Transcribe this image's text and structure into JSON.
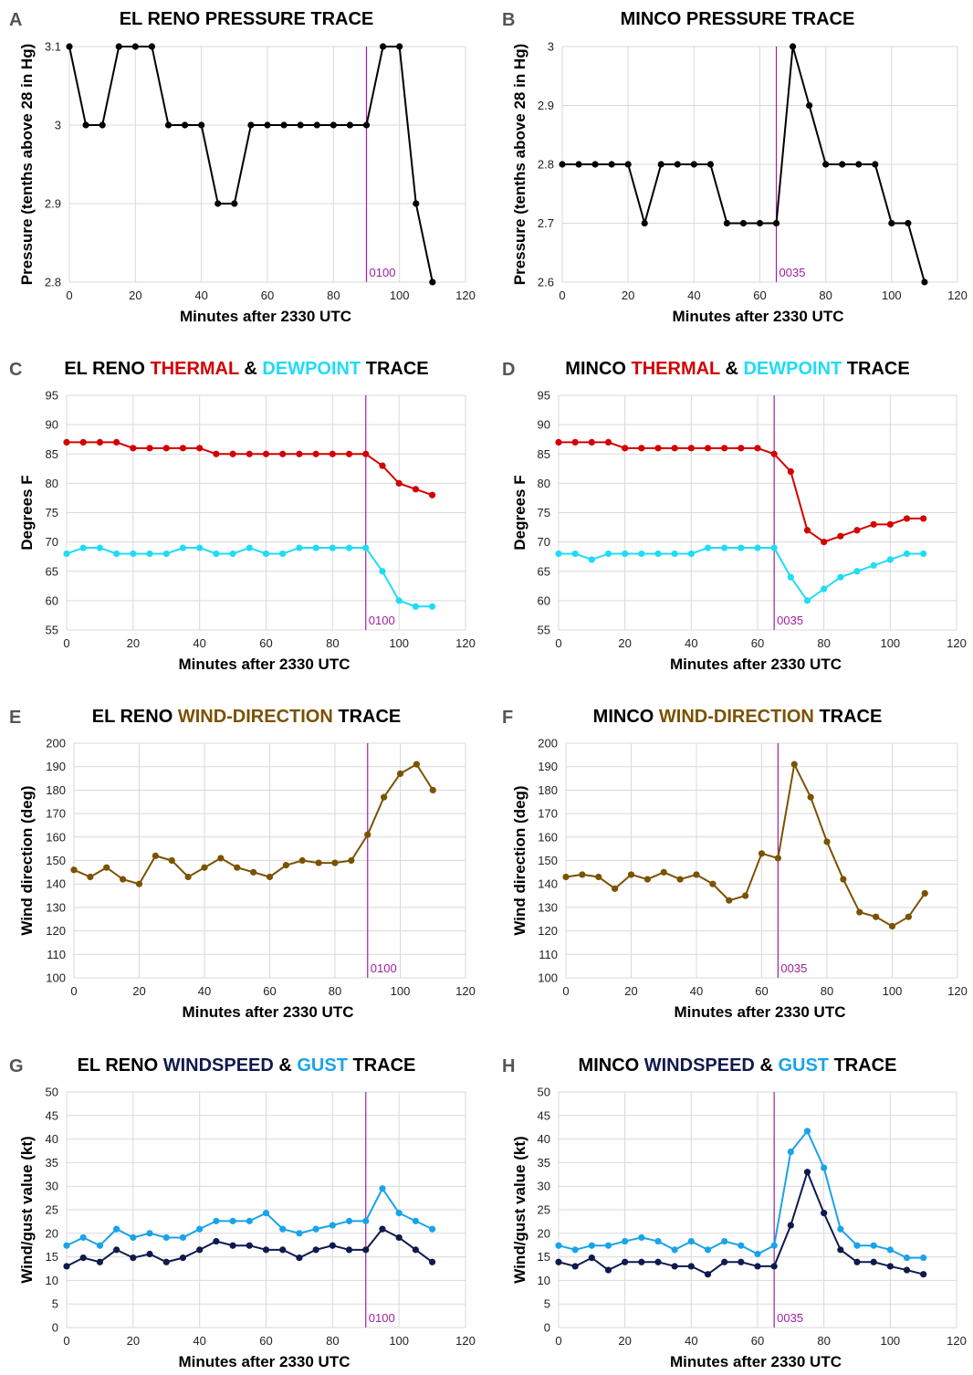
{
  "colors": {
    "black": "#000000",
    "thermal": "#d40000",
    "dewpoint": "#1fdcf5",
    "wind_dir": "#7a5200",
    "speed": "#0e1a4d",
    "gust": "#1aa3e8",
    "marker": "#a020a0",
    "grid": "#d9d9d9"
  },
  "chart_data": [
    {
      "panel": "A",
      "type": "line",
      "title": [
        {
          "text": "EL RENO PRESSURE TRACE",
          "color": "black"
        }
      ],
      "xlabel": "Minutes after 2330 UTC",
      "ylabel": "Pressure (tenths above 28 in Hg)",
      "xlim": [
        0,
        120
      ],
      "xticks": [
        "0",
        "20",
        "40",
        "60",
        "80",
        "100",
        "120"
      ],
      "ylim": [
        2.8,
        3.1
      ],
      "yticks": [
        "2.8",
        "2.9",
        "3",
        "3.1"
      ],
      "marker": {
        "x": 90,
        "label": "0100"
      },
      "x": [
        0,
        5,
        10,
        15,
        20,
        25,
        30,
        35,
        40,
        45,
        50,
        55,
        60,
        65,
        70,
        75,
        80,
        85,
        90,
        95,
        100,
        105,
        110
      ],
      "series": [
        {
          "color": "black",
          "values": [
            3.1,
            3.0,
            3.0,
            3.1,
            3.1,
            3.1,
            3.0,
            3.0,
            3.0,
            2.9,
            2.9,
            3.0,
            3.0,
            3.0,
            3.0,
            3.0,
            3.0,
            3.0,
            3.0,
            3.1,
            3.1,
            2.9,
            2.8
          ]
        }
      ]
    },
    {
      "panel": "B",
      "type": "line",
      "title": [
        {
          "text": "MINCO PRESSURE TRACE",
          "color": "black"
        }
      ],
      "xlabel": "Minutes after 2330 UTC",
      "ylabel": "Pressure (tenths above 28 in Hg)",
      "xlim": [
        0,
        120
      ],
      "xticks": [
        "0",
        "20",
        "40",
        "60",
        "80",
        "100",
        "120"
      ],
      "ylim": [
        2.6,
        3.0
      ],
      "yticks": [
        "2.6",
        "2.7",
        "2.8",
        "2.9",
        "3"
      ],
      "marker": {
        "x": 65,
        "label": "0035"
      },
      "x": [
        0,
        5,
        10,
        15,
        20,
        25,
        30,
        35,
        40,
        45,
        50,
        55,
        60,
        65,
        70,
        75,
        80,
        85,
        90,
        95,
        100,
        105,
        110
      ],
      "series": [
        {
          "color": "black",
          "values": [
            2.8,
            2.8,
            2.8,
            2.8,
            2.8,
            2.7,
            2.8,
            2.8,
            2.8,
            2.8,
            2.7,
            2.7,
            2.7,
            2.7,
            3.0,
            2.9,
            2.8,
            2.8,
            2.8,
            2.8,
            2.7,
            2.7,
            2.6
          ]
        }
      ]
    },
    {
      "panel": "C",
      "type": "line",
      "title": [
        {
          "text": "EL RENO ",
          "color": "black"
        },
        {
          "text": "THERMAL ",
          "color": "thermal"
        },
        {
          "text": "& ",
          "color": "black"
        },
        {
          "text": "DEWPOINT ",
          "color": "dewpoint"
        },
        {
          "text": "TRACE",
          "color": "black"
        }
      ],
      "xlabel": "Minutes after 2330 UTC",
      "ylabel": "Degrees F",
      "xlim": [
        0,
        120
      ],
      "xticks": [
        "0",
        "20",
        "40",
        "60",
        "80",
        "100",
        "120"
      ],
      "ylim": [
        55,
        95
      ],
      "yticks": [
        "55",
        "60",
        "65",
        "70",
        "75",
        "80",
        "85",
        "90",
        "95"
      ],
      "marker": {
        "x": 90,
        "label": "0100"
      },
      "x": [
        0,
        5,
        10,
        15,
        20,
        25,
        30,
        35,
        40,
        45,
        50,
        55,
        60,
        65,
        70,
        75,
        80,
        85,
        90,
        95,
        100,
        105,
        110
      ],
      "series": [
        {
          "color": "thermal",
          "values": [
            87,
            87,
            87,
            87,
            86,
            86,
            86,
            86,
            86,
            85,
            85,
            85,
            85,
            85,
            85,
            85,
            85,
            85,
            85,
            83,
            80,
            79,
            78
          ]
        },
        {
          "color": "dewpoint",
          "values": [
            68,
            69,
            69,
            68,
            68,
            68,
            68,
            69,
            69,
            68,
            68,
            69,
            68,
            68,
            69,
            69,
            69,
            69,
            69,
            65,
            60,
            59,
            59
          ]
        }
      ]
    },
    {
      "panel": "D",
      "type": "line",
      "title": [
        {
          "text": "MINCO ",
          "color": "black"
        },
        {
          "text": "THERMAL ",
          "color": "thermal"
        },
        {
          "text": "& ",
          "color": "black"
        },
        {
          "text": "DEWPOINT ",
          "color": "dewpoint"
        },
        {
          "text": "TRACE",
          "color": "black"
        }
      ],
      "xlabel": "Minutes after 2330 UTC",
      "ylabel": "Degrees F",
      "xlim": [
        0,
        120
      ],
      "xticks": [
        "0",
        "20",
        "40",
        "60",
        "80",
        "100",
        "120"
      ],
      "ylim": [
        55,
        95
      ],
      "yticks": [
        "55",
        "60",
        "65",
        "70",
        "75",
        "80",
        "85",
        "90",
        "95"
      ],
      "marker": {
        "x": 65,
        "label": "0035"
      },
      "x": [
        0,
        5,
        10,
        15,
        20,
        25,
        30,
        35,
        40,
        45,
        50,
        55,
        60,
        65,
        70,
        75,
        80,
        85,
        90,
        95,
        100,
        105,
        110
      ],
      "series": [
        {
          "color": "thermal",
          "values": [
            87,
            87,
            87,
            87,
            86,
            86,
            86,
            86,
            86,
            86,
            86,
            86,
            86,
            85,
            82,
            72,
            70,
            71,
            72,
            73,
            73,
            74,
            74
          ]
        },
        {
          "color": "dewpoint",
          "values": [
            68,
            68,
            67,
            68,
            68,
            68,
            68,
            68,
            68,
            69,
            69,
            69,
            69,
            69,
            64,
            60,
            62,
            64,
            65,
            66,
            67,
            68,
            68
          ]
        }
      ]
    },
    {
      "panel": "E",
      "type": "line",
      "title": [
        {
          "text": "EL RENO ",
          "color": "black"
        },
        {
          "text": "WIND-DIRECTION ",
          "color": "wind_dir"
        },
        {
          "text": "TRACE",
          "color": "black"
        }
      ],
      "xlabel": "Minutes after 2330 UTC",
      "ylabel": "Wind direction (deg)",
      "xlim": [
        0,
        120
      ],
      "xticks": [
        "0",
        "20",
        "40",
        "60",
        "80",
        "100",
        "120"
      ],
      "ylim": [
        100,
        200
      ],
      "yticks": [
        "100",
        "110",
        "120",
        "130",
        "140",
        "150",
        "160",
        "170",
        "180",
        "190",
        "200"
      ],
      "marker": {
        "x": 90,
        "label": "0100"
      },
      "x": [
        0,
        5,
        10,
        15,
        20,
        25,
        30,
        35,
        40,
        45,
        50,
        55,
        60,
        65,
        70,
        75,
        80,
        85,
        90,
        95,
        100,
        105,
        110
      ],
      "series": [
        {
          "color": "wind_dir",
          "values": [
            146,
            143,
            147,
            142,
            140,
            152,
            150,
            143,
            147,
            151,
            147,
            145,
            143,
            148,
            150,
            149,
            149,
            150,
            161,
            177,
            187,
            191,
            180
          ]
        }
      ]
    },
    {
      "panel": "F",
      "type": "line",
      "title": [
        {
          "text": "MINCO ",
          "color": "black"
        },
        {
          "text": "WIND-DIRECTION ",
          "color": "wind_dir"
        },
        {
          "text": "TRACE",
          "color": "black"
        }
      ],
      "xlabel": "Minutes after 2330 UTC",
      "ylabel": "Wind direction (deg)",
      "xlim": [
        0,
        120
      ],
      "xticks": [
        "0",
        "20",
        "40",
        "60",
        "80",
        "100",
        "120"
      ],
      "ylim": [
        100,
        200
      ],
      "yticks": [
        "100",
        "110",
        "120",
        "130",
        "140",
        "150",
        "160",
        "170",
        "180",
        "190",
        "200"
      ],
      "marker": {
        "x": 65,
        "label": "0035"
      },
      "x": [
        0,
        5,
        10,
        15,
        20,
        25,
        30,
        35,
        40,
        45,
        50,
        55,
        60,
        65,
        70,
        75,
        80,
        85,
        90,
        95,
        100,
        105,
        110
      ],
      "series": [
        {
          "color": "wind_dir",
          "values": [
            143,
            144,
            143,
            138,
            144,
            142,
            145,
            142,
            144,
            140,
            133,
            135,
            153,
            151,
            191,
            177,
            158,
            142,
            128,
            126,
            122,
            126,
            136
          ]
        }
      ]
    },
    {
      "panel": "G",
      "type": "line",
      "title": [
        {
          "text": "EL RENO ",
          "color": "black"
        },
        {
          "text": "WINDSPEED ",
          "color": "speed"
        },
        {
          "text": "& ",
          "color": "black"
        },
        {
          "text": "GUST ",
          "color": "gust"
        },
        {
          "text": "TRACE",
          "color": "black"
        }
      ],
      "xlabel": "Minutes after 2330 UTC",
      "ylabel": "Wind/gust value (kt)",
      "xlim": [
        0,
        120
      ],
      "xticks": [
        "0",
        "20",
        "40",
        "60",
        "80",
        "100",
        "120"
      ],
      "ylim": [
        0,
        50
      ],
      "yticks": [
        "0",
        "5",
        "10",
        "15",
        "20",
        "25",
        "30",
        "35",
        "40",
        "45",
        "50"
      ],
      "marker": {
        "x": 90,
        "label": "0100"
      },
      "x": [
        0,
        5,
        10,
        15,
        20,
        25,
        30,
        35,
        40,
        45,
        50,
        55,
        60,
        65,
        70,
        75,
        80,
        85,
        90,
        95,
        100,
        105,
        110
      ],
      "series": [
        {
          "color": "gust",
          "values": [
            17.4,
            19.1,
            17.4,
            20.9,
            19.1,
            20,
            19.1,
            19.1,
            20.9,
            22.6,
            22.6,
            22.6,
            24.3,
            20.9,
            20,
            20.9,
            21.7,
            22.6,
            22.6,
            29.5,
            24.3,
            22.6,
            20.9
          ]
        },
        {
          "color": "speed",
          "values": [
            13,
            14.8,
            13.9,
            16.5,
            14.8,
            15.6,
            13.9,
            14.8,
            16.5,
            18.3,
            17.4,
            17.4,
            16.5,
            16.5,
            14.8,
            16.5,
            17.4,
            16.5,
            16.5,
            20.9,
            19.1,
            16.5,
            13.9
          ]
        }
      ]
    },
    {
      "panel": "H",
      "type": "line",
      "title": [
        {
          "text": "MINCO ",
          "color": "black"
        },
        {
          "text": "WINDSPEED ",
          "color": "speed"
        },
        {
          "text": "& ",
          "color": "black"
        },
        {
          "text": "GUST ",
          "color": "gust"
        },
        {
          "text": "TRACE",
          "color": "black"
        }
      ],
      "xlabel": "Minutes after 2330 UTC",
      "ylabel": "Wind/gust value (kt)",
      "xlim": [
        0,
        120
      ],
      "xticks": [
        "0",
        "20",
        "40",
        "60",
        "80",
        "100",
        "120"
      ],
      "ylim": [
        0,
        50
      ],
      "yticks": [
        "0",
        "5",
        "10",
        "15",
        "20",
        "25",
        "30",
        "35",
        "40",
        "45",
        "50"
      ],
      "marker": {
        "x": 65,
        "label": "0035"
      },
      "x": [
        0,
        5,
        10,
        15,
        20,
        25,
        30,
        35,
        40,
        45,
        50,
        55,
        60,
        65,
        70,
        75,
        80,
        85,
        90,
        95,
        100,
        105,
        110
      ],
      "series": [
        {
          "color": "gust",
          "values": [
            17.4,
            16.5,
            17.4,
            17.4,
            18.3,
            19.1,
            18.3,
            16.5,
            18.3,
            16.5,
            18.3,
            17.4,
            15.6,
            17.4,
            37.3,
            41.7,
            33.9,
            20.9,
            17.4,
            17.4,
            16.5,
            14.8,
            14.8
          ]
        },
        {
          "color": "speed",
          "values": [
            13.9,
            13,
            14.8,
            12.2,
            13.9,
            13.9,
            13.9,
            13,
            13,
            11.3,
            13.9,
            13.9,
            13,
            13,
            21.7,
            33,
            24.3,
            16.5,
            13.9,
            13.9,
            13,
            12.2,
            11.3
          ]
        }
      ]
    }
  ]
}
